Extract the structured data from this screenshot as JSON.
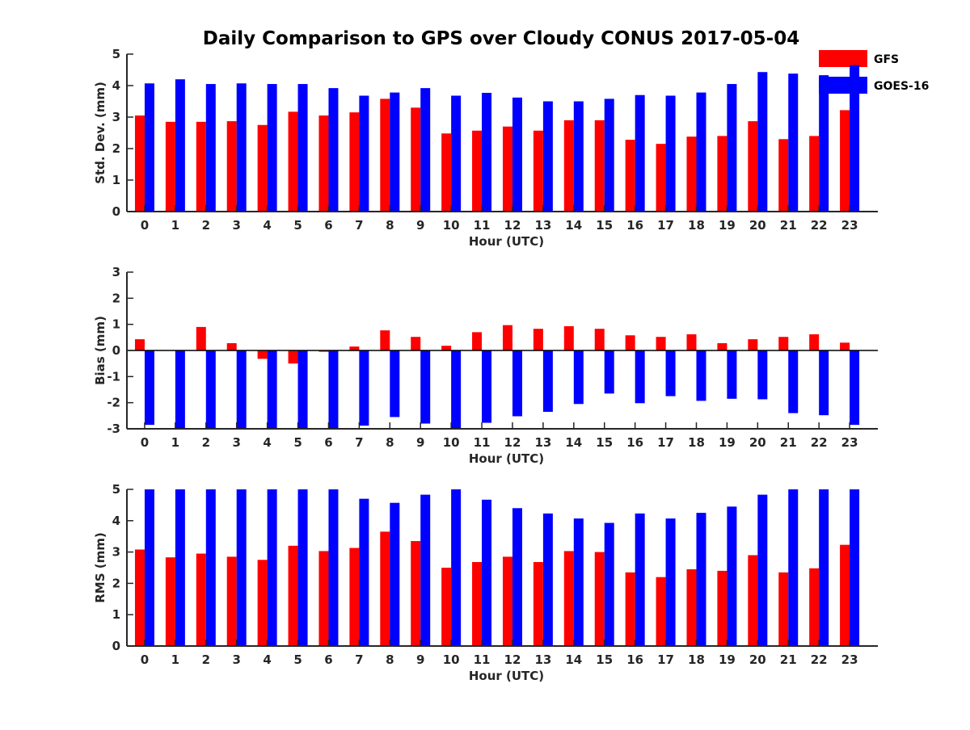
{
  "title": "Daily Comparison to GPS over Cloudy CONUS 2017-05-04",
  "colors": {
    "gfs": "#ff0000",
    "goes": "#0000ff",
    "axis": "#262626"
  },
  "legend": [
    {
      "name": "GFS",
      "color": "#ff0000"
    },
    {
      "name": "GOES-16",
      "color": "#0000ff"
    }
  ],
  "chart_data": [
    {
      "type": "bar",
      "title": "Daily Comparison to GPS over Cloudy CONUS 2017-05-04",
      "xlabel": "Hour (UTC)",
      "ylabel": "Std. Dev. (mm)",
      "ylim": [
        0,
        5
      ],
      "yticks": [
        0,
        1,
        2,
        3,
        4,
        5
      ],
      "categories": [
        "0",
        "1",
        "2",
        "3",
        "4",
        "5",
        "6",
        "7",
        "8",
        "9",
        "10",
        "11",
        "12",
        "13",
        "14",
        "15",
        "16",
        "17",
        "18",
        "19",
        "20",
        "21",
        "22",
        "23"
      ],
      "series": [
        {
          "name": "GFS",
          "values": [
            3.05,
            2.85,
            2.85,
            2.87,
            2.75,
            3.17,
            3.05,
            3.15,
            3.58,
            3.3,
            2.48,
            2.57,
            2.7,
            2.57,
            2.9,
            2.9,
            2.28,
            2.15,
            2.38,
            2.4,
            2.87,
            2.3,
            2.4,
            3.22
          ]
        },
        {
          "name": "GOES-16",
          "values": [
            4.07,
            4.2,
            4.05,
            4.07,
            4.05,
            4.05,
            3.92,
            3.68,
            3.78,
            3.92,
            3.68,
            3.77,
            3.62,
            3.5,
            3.5,
            3.58,
            3.7,
            3.68,
            3.78,
            4.05,
            4.43,
            4.38,
            4.33,
            4.65
          ]
        }
      ]
    },
    {
      "type": "bar",
      "xlabel": "Hour (UTC)",
      "ylabel": "Bias (mm)",
      "ylim": [
        -3,
        3
      ],
      "yticks": [
        -3,
        -2,
        -1,
        0,
        1,
        2,
        3
      ],
      "categories": [
        "0",
        "1",
        "2",
        "3",
        "4",
        "5",
        "6",
        "7",
        "8",
        "9",
        "10",
        "11",
        "12",
        "13",
        "14",
        "15",
        "16",
        "17",
        "18",
        "19",
        "20",
        "21",
        "22",
        "23"
      ],
      "series": [
        {
          "name": "GFS",
          "values": [
            0.43,
            0.0,
            0.9,
            0.28,
            -0.32,
            -0.5,
            -0.05,
            0.15,
            0.77,
            0.52,
            0.18,
            0.7,
            0.97,
            0.83,
            0.93,
            0.83,
            0.58,
            0.52,
            0.62,
            0.28,
            0.43,
            0.52,
            0.62,
            0.3
          ]
        },
        {
          "name": "GOES-16",
          "values": [
            -2.85,
            -3.0,
            -3.0,
            -3.0,
            -3.0,
            -3.0,
            -3.0,
            -2.88,
            -2.55,
            -2.8,
            -3.0,
            -2.77,
            -2.52,
            -2.35,
            -2.05,
            -1.65,
            -2.02,
            -1.75,
            -1.93,
            -1.85,
            -1.87,
            -2.4,
            -2.48,
            -2.85
          ]
        }
      ]
    },
    {
      "type": "bar",
      "xlabel": "Hour (UTC)",
      "ylabel": "RMS (mm)",
      "ylim": [
        0,
        5
      ],
      "yticks": [
        0,
        1,
        2,
        3,
        4,
        5
      ],
      "categories": [
        "0",
        "1",
        "2",
        "3",
        "4",
        "5",
        "6",
        "7",
        "8",
        "9",
        "10",
        "11",
        "12",
        "13",
        "14",
        "15",
        "16",
        "17",
        "18",
        "19",
        "20",
        "21",
        "22",
        "23"
      ],
      "series": [
        {
          "name": "GFS",
          "values": [
            3.08,
            2.83,
            2.95,
            2.85,
            2.75,
            3.2,
            3.03,
            3.13,
            3.65,
            3.35,
            2.5,
            2.68,
            2.85,
            2.68,
            3.03,
            3.0,
            2.35,
            2.2,
            2.45,
            2.4,
            2.9,
            2.35,
            2.48,
            3.23
          ]
        },
        {
          "name": "GOES-16",
          "values": [
            5.0,
            5.0,
            5.0,
            5.0,
            5.0,
            5.0,
            5.0,
            4.7,
            4.57,
            4.83,
            5.0,
            4.67,
            4.4,
            4.23,
            4.07,
            3.93,
            4.23,
            4.07,
            4.25,
            4.45,
            4.83,
            5.0,
            5.0,
            5.0
          ]
        }
      ]
    }
  ]
}
